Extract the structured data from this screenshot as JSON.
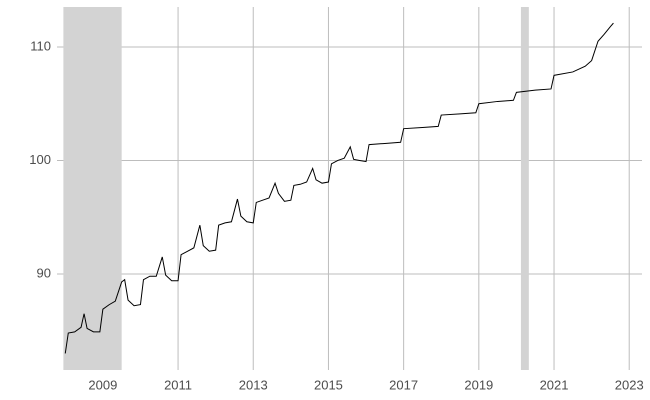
{
  "chart_data": {
    "type": "line",
    "x": [
      2008.0,
      2008.08,
      2008.25,
      2008.42,
      2008.5,
      2008.58,
      2008.75,
      2008.92,
      2009.0,
      2009.17,
      2009.33,
      2009.5,
      2009.58,
      2009.67,
      2009.83,
      2010.0,
      2010.08,
      2010.25,
      2010.42,
      2010.58,
      2010.67,
      2010.83,
      2011.0,
      2011.08,
      2011.25,
      2011.42,
      2011.58,
      2011.67,
      2011.83,
      2012.0,
      2012.08,
      2012.25,
      2012.42,
      2012.58,
      2012.67,
      2012.83,
      2013.0,
      2013.08,
      2013.25,
      2013.42,
      2013.58,
      2013.67,
      2013.83,
      2014.0,
      2014.08,
      2014.25,
      2014.42,
      2014.58,
      2014.67,
      2014.83,
      2015.0,
      2015.08,
      2015.25,
      2015.42,
      2015.58,
      2015.67,
      2015.83,
      2016.0,
      2016.08,
      2016.5,
      2016.92,
      2017.0,
      2017.5,
      2017.92,
      2018.0,
      2018.5,
      2018.92,
      2019.0,
      2019.5,
      2019.92,
      2020.0,
      2020.5,
      2020.92,
      2021.0,
      2021.5,
      2021.83,
      2022.0,
      2022.17,
      2022.33,
      2022.5,
      2022.58
    ],
    "values": [
      83.0,
      84.8,
      84.9,
      85.3,
      86.5,
      85.2,
      84.9,
      84.9,
      86.9,
      87.3,
      87.6,
      89.3,
      89.5,
      87.7,
      87.2,
      87.3,
      89.5,
      89.8,
      89.8,
      91.5,
      89.9,
      89.4,
      89.4,
      91.7,
      92.0,
      92.3,
      94.3,
      92.5,
      92.0,
      92.1,
      94.3,
      94.5,
      94.6,
      96.6,
      95.1,
      94.6,
      94.5,
      96.3,
      96.5,
      96.7,
      98.0,
      97.1,
      96.4,
      96.5,
      97.8,
      97.9,
      98.1,
      99.3,
      98.3,
      98.0,
      98.1,
      99.7,
      100.0,
      100.2,
      101.2,
      100.1,
      100.0,
      99.9,
      101.4,
      101.5,
      101.6,
      102.8,
      102.9,
      103.0,
      104.0,
      104.1,
      104.2,
      105.0,
      105.2,
      105.3,
      106.0,
      106.2,
      106.3,
      107.5,
      107.8,
      108.3,
      108.8,
      110.5,
      111.1,
      111.8,
      112.1
    ],
    "color": "#000000",
    "shaded_regions": [
      [
        2007.95,
        2009.5
      ],
      [
        2020.12,
        2020.33
      ]
    ],
    "shade_color": "#d3d3d3",
    "xlim": [
      2007.78,
      2023.34
    ],
    "xticks": [
      2009,
      2011,
      2013,
      2015,
      2017,
      2019,
      2021,
      2023
    ],
    "ylim": [
      81.54,
      113.52
    ],
    "yticks": [
      90,
      100,
      110
    ],
    "grid": true
  }
}
